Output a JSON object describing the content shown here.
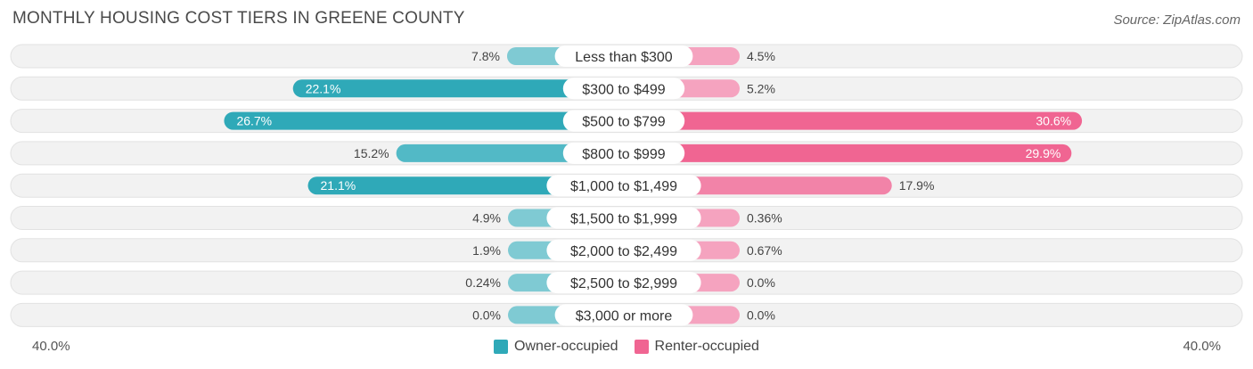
{
  "title": "MONTHLY HOUSING COST TIERS IN GREENE COUNTY",
  "source": "Source: ZipAtlas.com",
  "axis": {
    "left_label": "40.0%",
    "right_label": "40.0%"
  },
  "colors": {
    "owner_strong": "#2fa9b8",
    "owner_light": "#7fcad3",
    "renter_strong": "#f06592",
    "renter_light": "#f5a3bf",
    "row_bg": "#f2f2f2"
  },
  "legend": {
    "owner_label": "Owner-occupied",
    "renter_label": "Renter-occupied"
  },
  "chart_data": {
    "type": "bar",
    "title": "MONTHLY HOUSING COST TIERS IN GREENE COUNTY",
    "orientation": "diverging-horizontal",
    "max": 40.0,
    "categories": [
      "Less than $300",
      "$300 to $499",
      "$500 to $799",
      "$800 to $999",
      "$1,000 to $1,499",
      "$1,500 to $1,999",
      "$2,000 to $2,499",
      "$2,500 to $2,999",
      "$3,000 or more"
    ],
    "series": [
      {
        "name": "Owner-occupied",
        "values": [
          7.8,
          22.1,
          26.7,
          15.2,
          21.1,
          4.9,
          1.9,
          0.24,
          0.0
        ],
        "labels": [
          "7.8%",
          "22.1%",
          "26.7%",
          "15.2%",
          "21.1%",
          "4.9%",
          "1.9%",
          "0.24%",
          "0.0%"
        ]
      },
      {
        "name": "Renter-occupied",
        "values": [
          4.5,
          5.2,
          30.6,
          29.9,
          17.9,
          0.36,
          0.67,
          0.0,
          0.0
        ],
        "labels": [
          "4.5%",
          "5.2%",
          "30.6%",
          "29.9%",
          "17.9%",
          "0.36%",
          "0.67%",
          "0.0%",
          "0.0%"
        ]
      }
    ],
    "legend_position": "bottom-center"
  }
}
